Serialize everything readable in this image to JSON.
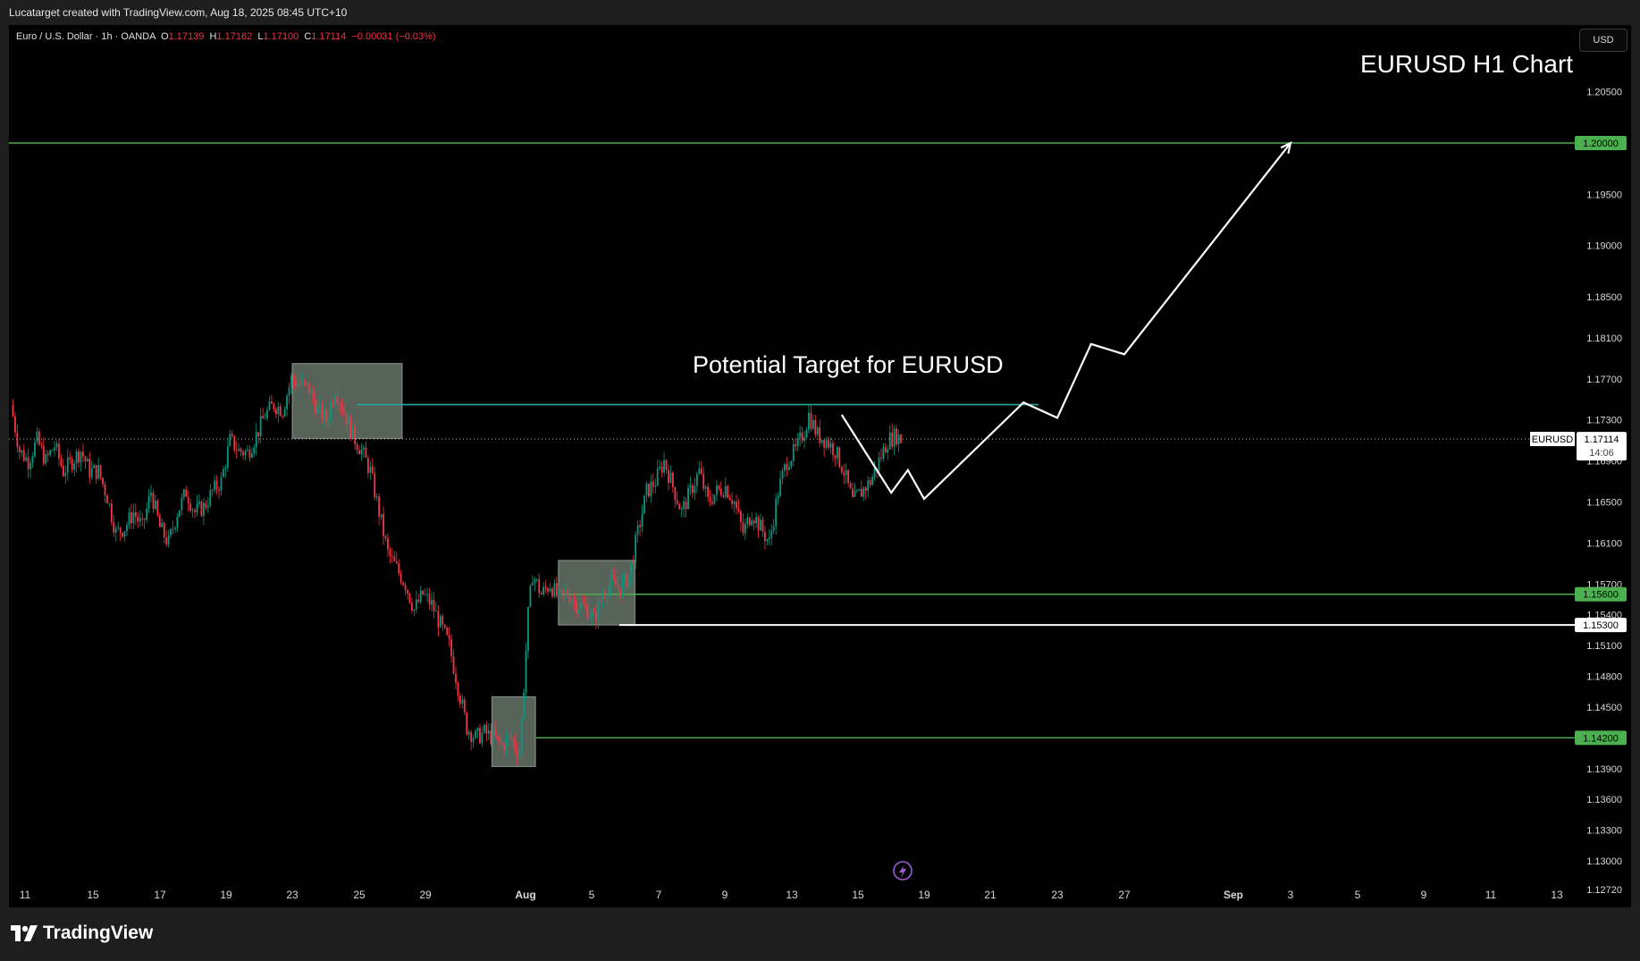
{
  "header": {
    "attribution": "Lucatarget created with TradingView.com, Aug 18, 2025 08:45 UTC+10"
  },
  "legend": {
    "symbol": "Euro / U.S. Dollar · 1h · OANDA",
    "open_label": "O",
    "open": "1.17139",
    "high_label": "H",
    "high": "1.17162",
    "low_label": "L",
    "low": "1.17100",
    "close_label": "C",
    "close": "1.17114",
    "change": "−0.00031 (−0.03%)"
  },
  "currency_button": "USD",
  "footer": {
    "brand": "TradingView"
  },
  "colors": {
    "up": "#089981",
    "down": "#f23645",
    "level_green": "#4caf50",
    "target_teal": "#26a69a",
    "box_fill": "#9fb3a0"
  },
  "chart_data": {
    "type": "candlestick",
    "title": "EURUSD H1 Chart",
    "annotation": "Potential Target for EURUSD",
    "symbol_tag": "EURUSD",
    "last_price": "1.17114",
    "countdown": "14:06",
    "y_ticks": [
      "1.20500",
      "1.19500",
      "1.19000",
      "1.18500",
      "1.18100",
      "1.17700",
      "1.17300",
      "1.16900",
      "1.16500",
      "1.16100",
      "1.15700",
      "1.15400",
      "1.15100",
      "1.14800",
      "1.14500",
      "1.13900",
      "1.13600",
      "1.13300",
      "1.13000",
      "1.12720"
    ],
    "x_ticks": [
      "11",
      "15",
      "17",
      "19",
      "23",
      "25",
      "29",
      "Aug",
      "5",
      "7",
      "9",
      "13",
      "15",
      "19",
      "21",
      "23",
      "27",
      "Sep",
      "3",
      "5",
      "9",
      "11",
      "13"
    ],
    "levels": [
      {
        "price": "1.20000",
        "color": "green"
      },
      {
        "price": "1.15600",
        "color": "green"
      },
      {
        "price": "1.15300",
        "color": "white"
      },
      {
        "price": "1.14200",
        "color": "green"
      }
    ],
    "target_line": 1.1745,
    "projection_path": [
      [
        1.1735,
        "Aug 14 12:00"
      ],
      [
        1.1659,
        "Aug 16"
      ],
      [
        1.1681,
        "Aug 16 12:00"
      ],
      [
        1.1653,
        "Aug 19"
      ],
      [
        1.1747,
        "Aug 22"
      ],
      [
        1.1732,
        "Aug 23"
      ],
      [
        1.1804,
        "Aug 26"
      ],
      [
        1.1794,
        "Aug 27"
      ],
      [
        1.2,
        "Sep 3"
      ]
    ],
    "zones": [
      {
        "from": "Jul 23",
        "to": "Jul 28",
        "high": 1.1785,
        "low": 1.1712
      },
      {
        "from": "Jul 31",
        "to": "Aug 1",
        "high": 1.146,
        "low": 1.1392
      },
      {
        "from": "Aug 4",
        "to": "Aug 6",
        "high": 1.1593,
        "low": 1.153
      }
    ],
    "price_path": [
      [
        0,
        1.1745
      ],
      [
        4,
        1.17
      ],
      [
        8,
        1.169
      ],
      [
        12,
        1.171
      ],
      [
        16,
        1.169
      ],
      [
        20,
        1.1705
      ],
      [
        24,
        1.168
      ],
      [
        28,
        1.169
      ],
      [
        32,
        1.17
      ],
      [
        36,
        1.168
      ],
      [
        40,
        1.168
      ],
      [
        44,
        1.1655
      ],
      [
        48,
        1.162
      ],
      [
        52,
        1.1625
      ],
      [
        56,
        1.164
      ],
      [
        60,
        1.1625
      ],
      [
        64,
        1.166
      ],
      [
        68,
        1.1625
      ],
      [
        72,
        1.161
      ],
      [
        76,
        1.164
      ],
      [
        80,
        1.166
      ],
      [
        84,
        1.164
      ],
      [
        88,
        1.1645
      ],
      [
        92,
        1.166
      ],
      [
        96,
        1.167
      ],
      [
        100,
        1.171
      ],
      [
        104,
        1.17
      ],
      [
        108,
        1.1698
      ],
      [
        112,
        1.1715
      ],
      [
        116,
        1.1735
      ],
      [
        120,
        1.1745
      ],
      [
        124,
        1.174
      ],
      [
        128,
        1.177
      ],
      [
        132,
        1.1765
      ],
      [
        136,
        1.176
      ],
      [
        140,
        1.174
      ],
      [
        144,
        1.173
      ],
      [
        148,
        1.176
      ],
      [
        152,
        1.1738
      ],
      [
        156,
        1.1715
      ],
      [
        160,
        1.17
      ],
      [
        164,
        1.168
      ],
      [
        168,
        1.164
      ],
      [
        172,
        1.16
      ],
      [
        176,
        1.1585
      ],
      [
        180,
        1.157
      ],
      [
        184,
        1.1545
      ],
      [
        188,
        1.156
      ],
      [
        192,
        1.155
      ],
      [
        196,
        1.153
      ],
      [
        200,
        1.151
      ],
      [
        204,
        1.147
      ],
      [
        208,
        1.143
      ],
      [
        212,
        1.142
      ],
      [
        216,
        1.1425
      ],
      [
        220,
        1.142
      ],
      [
        224,
        1.1412
      ],
      [
        228,
        1.142
      ],
      [
        232,
        1.1405
      ],
      [
        234,
        1.147
      ],
      [
        236,
        1.154
      ],
      [
        238,
        1.158
      ],
      [
        242,
        1.156
      ],
      [
        246,
        1.157
      ],
      [
        250,
        1.1555
      ],
      [
        254,
        1.1562
      ],
      [
        258,
        1.155
      ],
      [
        262,
        1.1548
      ],
      [
        266,
        1.1535
      ],
      [
        270,
        1.156
      ],
      [
        274,
        1.1572
      ],
      [
        278,
        1.1565
      ],
      [
        282,
        1.1578
      ],
      [
        286,
        1.162
      ],
      [
        290,
        1.166
      ],
      [
        294,
        1.167
      ],
      [
        298,
        1.169
      ],
      [
        302,
        1.1665
      ],
      [
        306,
        1.164
      ],
      [
        310,
        1.166
      ],
      [
        314,
        1.168
      ],
      [
        318,
        1.165
      ],
      [
        322,
        1.166
      ],
      [
        326,
        1.1665
      ],
      [
        330,
        1.165
      ],
      [
        334,
        1.162
      ],
      [
        338,
        1.164
      ],
      [
        342,
        1.1625
      ],
      [
        346,
        1.161
      ],
      [
        350,
        1.166
      ],
      [
        354,
        1.169
      ],
      [
        358,
        1.17
      ],
      [
        362,
        1.172
      ],
      [
        364,
        1.1735
      ],
      [
        368,
        1.1715
      ],
      [
        372,
        1.171
      ],
      [
        376,
        1.17
      ],
      [
        380,
        1.168
      ],
      [
        384,
        1.165
      ],
      [
        388,
        1.166
      ],
      [
        392,
        1.167
      ],
      [
        396,
        1.169
      ],
      [
        400,
        1.171
      ],
      [
        404,
        1.1715
      ],
      [
        406,
        1.1711
      ]
    ]
  }
}
